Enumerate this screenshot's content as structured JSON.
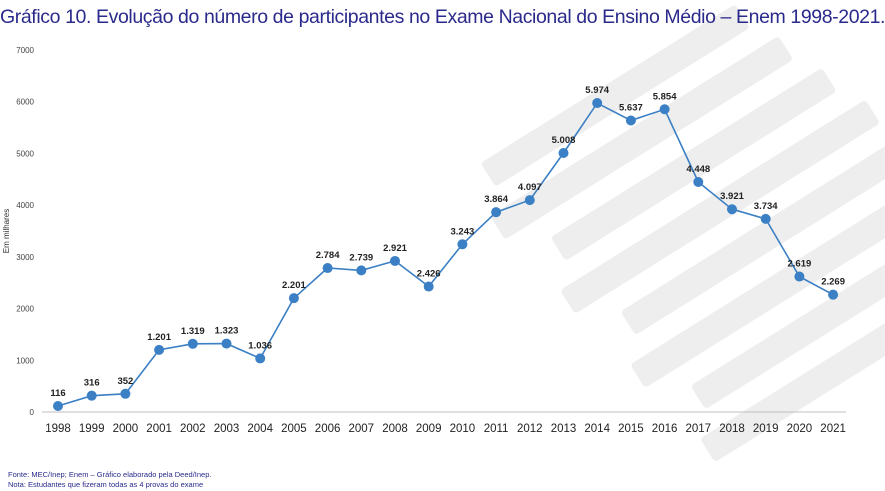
{
  "title": "Gráfico 10. Evolução do número de participantes no Exame Nacional do Ensino Médio – Enem 1998-2021.",
  "footer": {
    "source": "Fonte: MEC/Inep; Enem – Gráfico elaborado pela Deed/Inep.",
    "note": "Nota: Estudantes que fizeram todas as 4 provas do exame"
  },
  "colors": {
    "line": "#3b7fc4",
    "marker": "#3b7fc4",
    "title": "#2a2a8c",
    "axis": "#bfbfbf"
  },
  "chart_data": {
    "type": "line",
    "title": "Gráfico 10. Evolução do número de participantes no Exame Nacional do Ensino Médio – Enem 1998-2021.",
    "xlabel": "",
    "ylabel": "Em milhares",
    "ylim": [
      0,
      7000
    ],
    "yticks": [
      "0",
      "1000",
      "2000",
      "3000",
      "4000",
      "5000",
      "6000",
      "7000"
    ],
    "grid": false,
    "categories": [
      "1998",
      "1999",
      "2000",
      "2001",
      "2002",
      "2003",
      "2004",
      "2005",
      "2006",
      "2007",
      "2008",
      "2009",
      "2010",
      "2011",
      "2012",
      "2013",
      "2014",
      "2015",
      "2016",
      "2017",
      "2018",
      "2019",
      "2020",
      "2021"
    ],
    "series": [
      {
        "values": [
          116,
          316,
          352,
          1201,
          1319,
          1323,
          1036,
          2201,
          2784,
          2739,
          2921,
          2426,
          3243,
          3864,
          4097,
          5008,
          5974,
          5637,
          5854,
          4448,
          3921,
          3734,
          2619,
          2269
        ],
        "labels": [
          "116",
          "316",
          "352",
          "1.201",
          "1.319",
          "1.323",
          "1.036",
          "2.201",
          "2.784",
          "2.739",
          "2.921",
          "2.426",
          "3.243",
          "3.864",
          "4.097",
          "5.008",
          "5.974",
          "5.637",
          "5.854",
          "4.448",
          "3.921",
          "3.734",
          "2.619",
          "2.269"
        ]
      }
    ]
  }
}
